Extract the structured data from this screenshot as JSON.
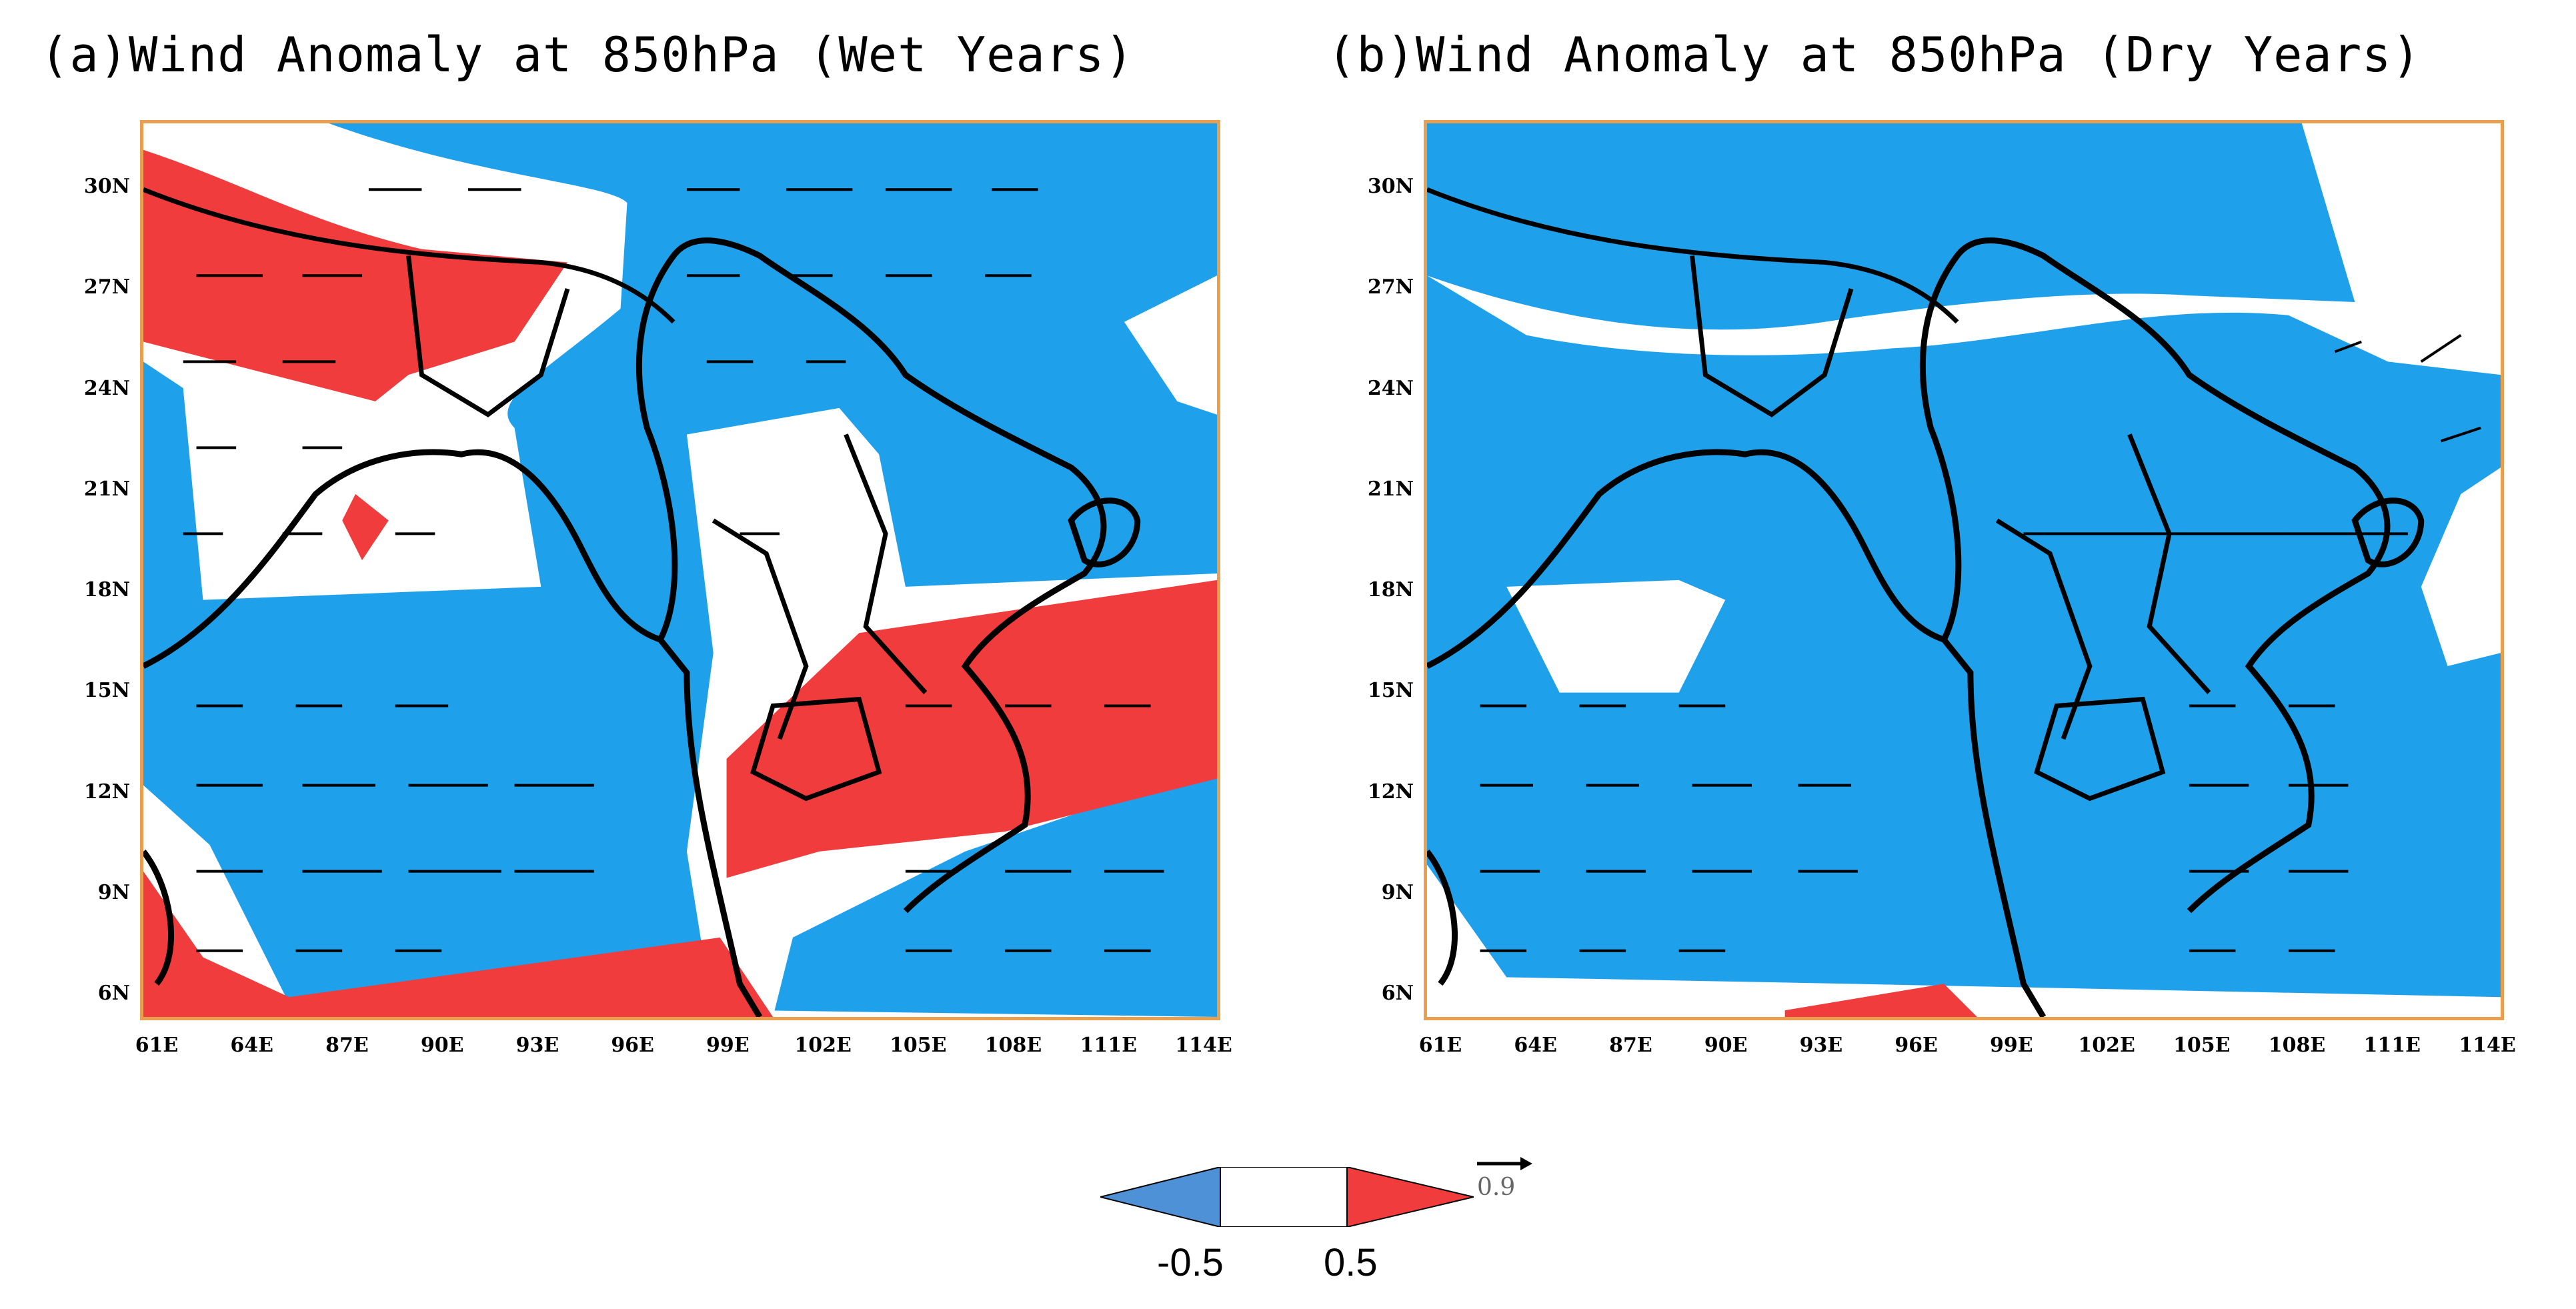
{
  "colors": {
    "negative": "#1fa0ea",
    "neutral": "#ffffff",
    "positive": "#f03c3c",
    "coast": "#000000",
    "frame": "#e8a050"
  },
  "panels": [
    {
      "id": "a",
      "title": "(a)Wind Anomaly at 850hPa (Wet Years)",
      "lat_labels": [
        "30N",
        "27N",
        "24N",
        "21N",
        "18N",
        "15N",
        "12N",
        "9N",
        "6N"
      ],
      "lon_labels": [
        "61E",
        "64E",
        "87E",
        "90E",
        "93E",
        "96E",
        "99E",
        "102E",
        "105E",
        "108E",
        "111E",
        "114E"
      ]
    },
    {
      "id": "b",
      "title": "(b)Wind Anomaly at 850hPa (Dry Years)",
      "lat_labels": [
        "30N",
        "27N",
        "24N",
        "21N",
        "18N",
        "15N",
        "12N",
        "9N",
        "6N"
      ],
      "lon_labels": [
        "61E",
        "64E",
        "87E",
        "90E",
        "93E",
        "96E",
        "99E",
        "102E",
        "105E",
        "108E",
        "111E",
        "114E"
      ]
    }
  ],
  "legend": {
    "min_label": "-0.5",
    "max_label": "0.5",
    "reference_vector": "0.9"
  }
}
